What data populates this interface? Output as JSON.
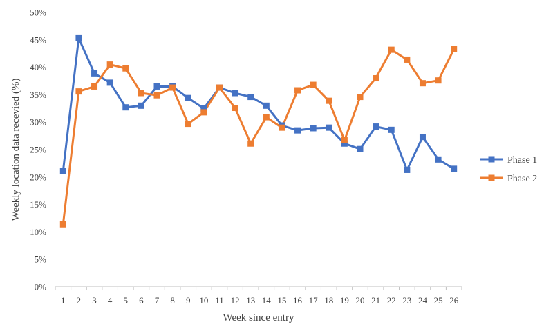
{
  "chart_data": {
    "type": "line",
    "title": "",
    "xlabel": "Week since entry",
    "ylabel": "Weekly location data recevied (%)",
    "categories": [
      "1",
      "2",
      "3",
      "4",
      "5",
      "6",
      "7",
      "8",
      "9",
      "10",
      "11",
      "12",
      "13",
      "14",
      "15",
      "16",
      "17",
      "18",
      "19",
      "20",
      "21",
      "22",
      "23",
      "24",
      "25",
      "26"
    ],
    "yticks": [
      "0%",
      "5%",
      "10%",
      "15%",
      "20%",
      "25%",
      "30%",
      "35%",
      "40%",
      "45%",
      "50%"
    ],
    "ylim": [
      0,
      50
    ],
    "grid": false,
    "legend_position": "right",
    "series": [
      {
        "name": "Phase 1",
        "color": "#4472C4",
        "values": [
          21.1,
          45.3,
          38.9,
          37.2,
          32.7,
          33.0,
          36.5,
          36.5,
          34.4,
          32.5,
          36.3,
          35.3,
          34.6,
          33.0,
          29.4,
          28.5,
          28.9,
          29.0,
          26.1,
          25.1,
          29.2,
          28.6,
          21.3,
          27.3,
          23.2,
          21.5
        ]
      },
      {
        "name": "Phase 2",
        "color": "#ED7D31",
        "values": [
          11.4,
          35.6,
          36.5,
          40.5,
          39.8,
          35.3,
          34.9,
          36.3,
          29.7,
          31.8,
          36.3,
          32.6,
          26.1,
          30.9,
          29.0,
          35.8,
          36.8,
          33.9,
          26.7,
          34.6,
          38.0,
          43.2,
          41.4,
          37.1,
          37.6,
          43.3
        ]
      }
    ]
  }
}
